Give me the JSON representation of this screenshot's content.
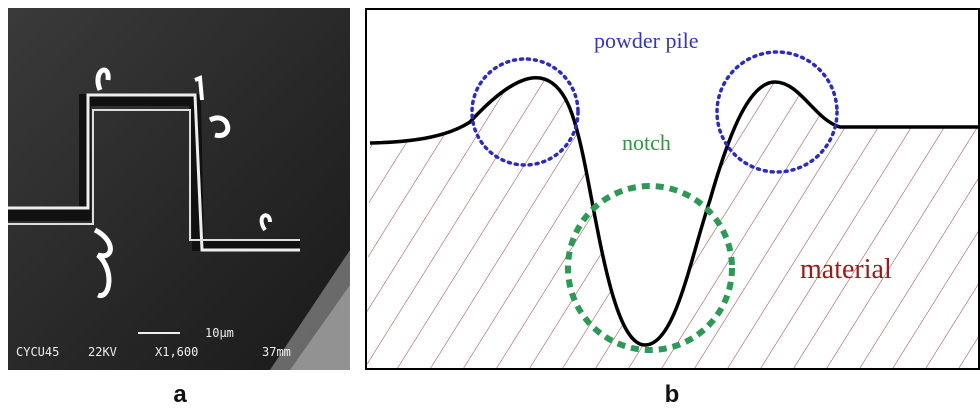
{
  "panel_a": {
    "label": "a",
    "scale_bar": "10μm",
    "info": [
      "CYCU45",
      "22KV",
      "X1,600",
      "37mm"
    ]
  },
  "panel_b": {
    "label": "b",
    "annotations": {
      "powder_pile": "powder pile",
      "notch": "notch",
      "material": "material"
    }
  }
}
